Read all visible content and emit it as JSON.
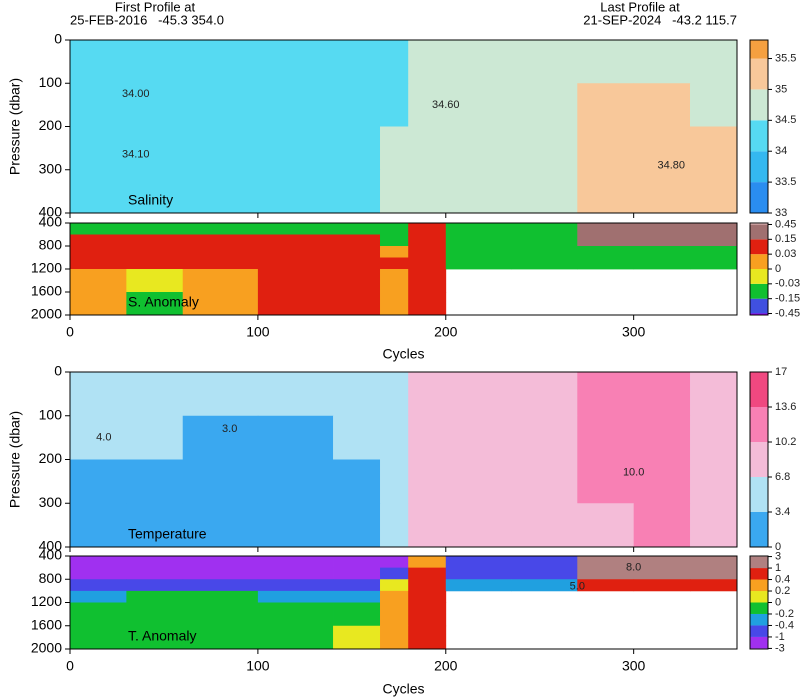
{
  "header": {
    "first_label": "First Profile at",
    "first_info": "25-FEB-2016   -45.3 354.0",
    "last_label": "Last Profile at",
    "last_info": "21-SEP-2024   -43.2 115.7"
  },
  "chart_data": [
    {
      "type": "section",
      "label": "Salinity",
      "ylabel": "Pressure (dbar)",
      "xlim": [
        0,
        355
      ],
      "xticks": [
        0,
        100,
        200,
        300
      ],
      "ylim": [
        0,
        400
      ],
      "yticks": [
        0,
        100,
        200,
        300,
        400
      ],
      "y_inverted": true,
      "colorbar": {
        "ticks": [
          33,
          33.5,
          34,
          34.5,
          35,
          35.5
        ],
        "colors": [
          "#1060e0",
          "#2a8df0",
          "#34b8f0",
          "#56daf2",
          "#cce8d4",
          "#f8c89a",
          "#f5a040"
        ]
      },
      "field": {
        "x_edges": [
          0,
          30,
          60,
          100,
          140,
          165,
          180,
          200,
          235,
          270,
          300,
          330,
          355
        ],
        "y_edges": [
          0,
          100,
          200,
          300,
          400
        ],
        "values": [
          [
            34.1,
            34.1,
            34.1,
            34.1,
            34.1,
            34.2,
            34.6,
            34.6,
            34.6,
            34.9,
            34.7,
            34.6
          ],
          [
            34.1,
            34.1,
            34.1,
            34.1,
            34.2,
            34.4,
            34.7,
            34.6,
            34.5,
            35.1,
            35.0,
            34.9
          ],
          [
            34.2,
            34.2,
            34.2,
            34.3,
            34.3,
            34.5,
            34.6,
            34.5,
            34.5,
            35.1,
            35.1,
            35.0
          ],
          [
            34.3,
            34.3,
            34.3,
            34.4,
            34.4,
            34.5,
            34.6,
            34.5,
            34.5,
            35.1,
            35.1,
            35.1
          ]
        ]
      },
      "contour_labels": [
        {
          "text": "34.00",
          "x": 35,
          "y": 125
        },
        {
          "text": "34.10",
          "x": 35,
          "y": 265
        },
        {
          "text": "34.60",
          "x": 200,
          "y": 150
        },
        {
          "text": "34.80",
          "x": 320,
          "y": 290
        }
      ]
    },
    {
      "type": "section",
      "label": "S. Anomaly",
      "xlabel": "Cycles",
      "xlim": [
        0,
        355
      ],
      "xticks": [
        0,
        100,
        200,
        300
      ],
      "ylim": [
        400,
        2000
      ],
      "yticks": [
        400,
        800,
        1200,
        1600,
        2000
      ],
      "y_inverted": true,
      "colorbar": {
        "ticks": [
          -0.45,
          -0.15,
          -0.03,
          0,
          0.03,
          0.15,
          0.45
        ],
        "colors": [
          "#a000e8",
          "#4050e0",
          "#10c030",
          "#e8e820",
          "#f8a020",
          "#e02010",
          "#a07070",
          "#f0c8c8"
        ]
      },
      "field": {
        "x_edges": [
          0,
          30,
          60,
          100,
          140,
          165,
          180,
          200,
          235,
          270,
          300,
          330,
          355
        ],
        "y_edges": [
          400,
          600,
          800,
          1000,
          1200,
          1600,
          2000
        ],
        "values": [
          [
            -0.1,
            -0.1,
            -0.1,
            -0.1,
            -0.1,
            -0.1,
            0.05,
            -0.1,
            -0.1,
            0.2,
            0.2,
            0.2
          ],
          [
            0.05,
            0.08,
            0.1,
            0.1,
            0.05,
            -0.05,
            0.1,
            -0.1,
            -0.1,
            0.2,
            0.2,
            0.2
          ],
          [
            0.1,
            0.1,
            0.1,
            0.1,
            0.08,
            0.02,
            0.05,
            -0.1,
            -0.1,
            -0.1,
            -0.1,
            -0.1
          ],
          [
            0.05,
            0.08,
            0.1,
            0.1,
            0.1,
            0.04,
            0.1,
            -0.1,
            -0.1,
            -0.1,
            -0.1,
            -0.1
          ],
          [
            0.01,
            -0.02,
            0.02,
            0.08,
            0.1,
            0.02,
            0.1,
            null,
            null,
            null,
            null,
            null
          ],
          [
            0.02,
            -0.05,
            0.01,
            0.08,
            0.1,
            0.02,
            0.1,
            null,
            null,
            null,
            null,
            null
          ]
        ]
      }
    },
    {
      "type": "section",
      "label": "Temperature",
      "ylabel": "Pressure (dbar)",
      "xlim": [
        0,
        355
      ],
      "xticks": [
        0,
        100,
        200,
        300
      ],
      "ylim": [
        0,
        400
      ],
      "yticks": [
        0,
        100,
        200,
        300,
        400
      ],
      "y_inverted": true,
      "colorbar": {
        "ticks": [
          0,
          3.4,
          6.8,
          10.2,
          13.6,
          17
        ],
        "colors": [
          "#0060e0",
          "#3aa8f0",
          "#b0e2f4",
          "#f4bcd8",
          "#f880b4",
          "#f04880",
          "#e81050"
        ]
      },
      "field": {
        "x_edges": [
          0,
          30,
          60,
          100,
          140,
          165,
          180,
          200,
          235,
          270,
          300,
          330,
          355
        ],
        "y_edges": [
          0,
          100,
          200,
          300,
          400
        ],
        "values": [
          [
            5,
            4.5,
            3.5,
            3.5,
            4.5,
            6,
            8,
            9,
            9,
            11,
            11,
            10
          ],
          [
            4,
            3.5,
            3,
            3,
            3.5,
            5.5,
            8,
            8.5,
            9,
            10.5,
            10.5,
            10
          ],
          [
            3.2,
            3,
            3,
            3,
            3.2,
            5,
            7.5,
            8,
            8.5,
            10.5,
            10.5,
            10
          ],
          [
            3,
            3,
            3,
            3,
            3,
            4.5,
            7,
            8,
            8,
            10,
            10.5,
            10
          ]
        ]
      },
      "contour_labels": [
        {
          "text": "4.0",
          "x": 18,
          "y": 150
        },
        {
          "text": "3.0",
          "x": 85,
          "y": 130
        },
        {
          "text": "10.0",
          "x": 300,
          "y": 230
        }
      ]
    },
    {
      "type": "section",
      "label": "T. Anomaly",
      "xlabel": "Cycles",
      "xlim": [
        0,
        355
      ],
      "xticks": [
        0,
        100,
        200,
        300
      ],
      "ylim": [
        400,
        2000
      ],
      "yticks": [
        400,
        800,
        1200,
        1600,
        2000
      ],
      "y_inverted": true,
      "colorbar": {
        "ticks": [
          -3,
          -1,
          -0.4,
          -0.2,
          0,
          0.2,
          0.4,
          1,
          3
        ],
        "colors": [
          "#9010e8",
          "#a030f0",
          "#4848e8",
          "#20a0e0",
          "#10c030",
          "#e8e820",
          "#f8a020",
          "#e02010",
          "#b08080",
          "#f0d0d0"
        ]
      },
      "field": {
        "x_edges": [
          0,
          30,
          60,
          100,
          140,
          165,
          180,
          200,
          235,
          270,
          300,
          330,
          355
        ],
        "y_edges": [
          400,
          600,
          800,
          1000,
          1200,
          1600,
          2000
        ],
        "values": [
          [
            -1.5,
            -1.5,
            -1.5,
            -1.5,
            -1.5,
            -1.5,
            0.3,
            -0.5,
            -0.5,
            2,
            2,
            2
          ],
          [
            -1.5,
            -1.5,
            -1.5,
            -1.5,
            -1.5,
            -0.5,
            0.5,
            -0.5,
            -0.5,
            1.5,
            1.5,
            1.5
          ],
          [
            -0.5,
            -0.5,
            -0.6,
            -0.6,
            -0.7,
            0.1,
            0.6,
            -0.3,
            -0.3,
            0.6,
            0.6,
            0.6
          ],
          [
            -0.3,
            -0.1,
            -0.1,
            -0.3,
            -0.3,
            0.3,
            0.6,
            null,
            null,
            null,
            null,
            null
          ],
          [
            -0.1,
            -0.1,
            -0.05,
            -0.1,
            -0.1,
            0.3,
            0.6,
            null,
            null,
            null,
            null,
            null
          ],
          [
            -0.1,
            -0.1,
            -0.05,
            -0.1,
            0.1,
            0.3,
            0.6,
            null,
            null,
            null,
            null,
            null
          ]
        ]
      },
      "contour_labels": [
        {
          "text": "8.0",
          "x": 300,
          "y": 600
        },
        {
          "text": "5.0",
          "x": 270,
          "y": 930
        }
      ]
    }
  ]
}
